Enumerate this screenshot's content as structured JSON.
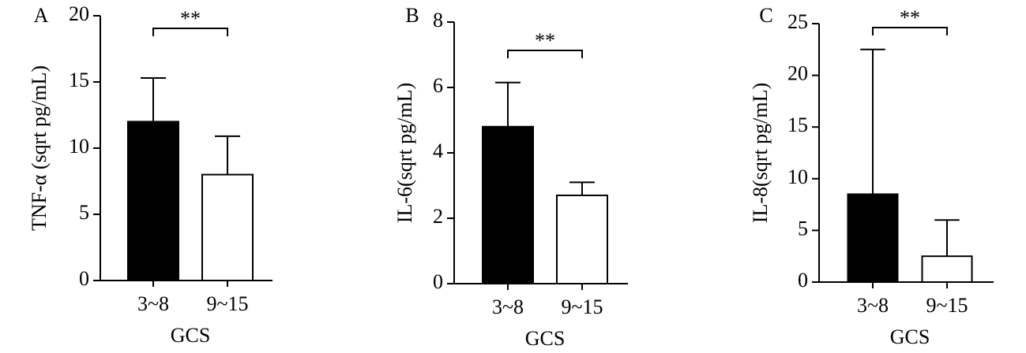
{
  "chart_data": [
    {
      "type": "bar",
      "panel": "A",
      "ylabel": "TNF-α (sqrt pg/mL)",
      "xlabel": "GCS",
      "categories": [
        "3~8",
        "9~15"
      ],
      "values": [
        12,
        8
      ],
      "errors": [
        3.3,
        2.9
      ],
      "colors": [
        "#000000",
        "#ffffff"
      ],
      "ylim": [
        0,
        20
      ],
      "yticks": [
        0,
        5,
        10,
        15,
        20
      ],
      "annotation": "**"
    },
    {
      "type": "bar",
      "panel": "B",
      "ylabel": "IL-6(sqrt pg/mL)",
      "xlabel": "GCS",
      "categories": [
        "3~8",
        "9~15"
      ],
      "values": [
        4.8,
        2.7
      ],
      "errors": [
        1.35,
        0.4
      ],
      "colors": [
        "#000000",
        "#ffffff"
      ],
      "ylim": [
        0,
        8
      ],
      "yticks": [
        0,
        2,
        4,
        6,
        8
      ],
      "annotation": "**"
    },
    {
      "type": "bar",
      "panel": "C",
      "ylabel": "IL-8(sqrt pg/mL)",
      "xlabel": "GCS",
      "categories": [
        "3~8",
        "9~15"
      ],
      "values": [
        8.5,
        2.5
      ],
      "errors": [
        14,
        3.5
      ],
      "colors": [
        "#000000",
        "#ffffff"
      ],
      "ylim": [
        0,
        25
      ],
      "yticks": [
        0,
        5,
        10,
        15,
        20,
        25
      ],
      "annotation": "**"
    }
  ]
}
